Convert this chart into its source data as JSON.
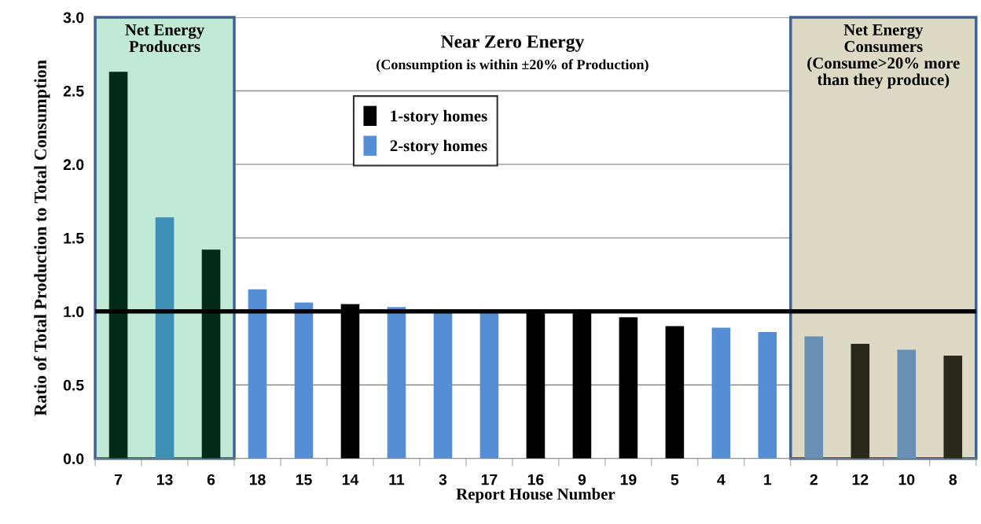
{
  "chart_data": {
    "type": "bar",
    "categories": [
      "7",
      "13",
      "6",
      "18",
      "15",
      "14",
      "11",
      "3",
      "17",
      "16",
      "9",
      "19",
      "5",
      "4",
      "1",
      "2",
      "12",
      "10",
      "8"
    ],
    "series": [
      {
        "name": "1-story homes",
        "color": "#000000",
        "values": [
          2.63,
          null,
          1.42,
          null,
          null,
          1.05,
          null,
          null,
          null,
          0.99,
          0.99,
          0.96,
          0.9,
          null,
          null,
          null,
          0.78,
          null,
          0.7
        ],
        "colors": [
          "#022a18",
          null,
          "#022a18",
          null,
          null,
          "#000000",
          null,
          null,
          null,
          "#000000",
          "#000000",
          "#000000",
          "#000000",
          null,
          null,
          null,
          "#2a271b",
          null,
          "#2a271b"
        ]
      },
      {
        "name": "2-story homes",
        "color": "#558ed5",
        "values": [
          null,
          1.64,
          null,
          1.15,
          1.06,
          null,
          1.03,
          0.99,
          0.99,
          null,
          null,
          null,
          null,
          0.89,
          0.86,
          0.83,
          null,
          0.74,
          null
        ],
        "colors": [
          null,
          "#3d90b4",
          null,
          "#558ed5",
          "#558ed5",
          null,
          "#558ed5",
          "#558ed5",
          "#558ed5",
          null,
          null,
          null,
          null,
          "#558ed5",
          "#558ed5",
          "#6990b4",
          null,
          "#6990b4",
          null
        ]
      }
    ],
    "xlabel": "Report House Number",
    "ylabel": "Ratio of Total Production to Total Consumption",
    "ylim": [
      0,
      3.0
    ],
    "yticks": [
      {
        "value": 0,
        "label": "0.0"
      },
      {
        "value": 0.5,
        "label": "0.5"
      },
      {
        "value": 1.0,
        "label": "1.0"
      },
      {
        "value": 1.5,
        "label": "1.5"
      },
      {
        "value": 2.0,
        "label": "2.0"
      },
      {
        "value": 2.5,
        "label": "2.5"
      },
      {
        "value": 3.0,
        "label": "3.0"
      }
    ],
    "grid": "y",
    "legend": "top",
    "ref_lines": [
      {
        "axis": "y",
        "value": 1.0,
        "color": "#000000"
      }
    ],
    "bands": [
      {
        "axis": "x",
        "from": "7",
        "to": "6",
        "label": "Net Energy\nProducers",
        "color": "#c0ead6"
      },
      {
        "axis": "x",
        "from": "2",
        "to": "8",
        "label": "Net Energy\nConsumers\n(Consume>20% more\nthan they produce)",
        "color": "#ddd9c4"
      }
    ],
    "annotations": [
      "Near Zero Energy",
      "(Consumption is within ±20% of Production)"
    ]
  }
}
